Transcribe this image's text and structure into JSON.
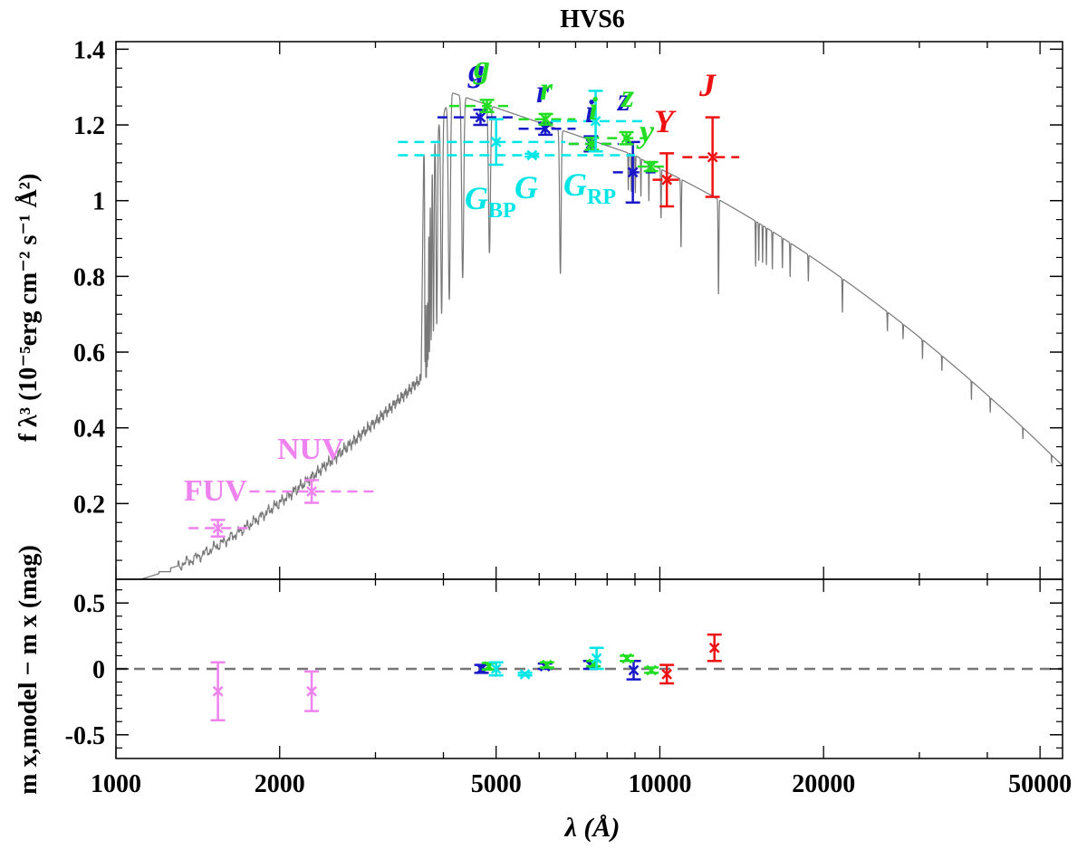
{
  "chart_data": [
    {
      "type": "line",
      "panel": "sed",
      "title": "HVS6",
      "ylabel": "f λ³ (10⁻⁵erg cm⁻² s⁻¹ Å²)",
      "xscale": "log",
      "xlim": [
        1000,
        55000
      ],
      "ylim": [
        0.0,
        1.42
      ],
      "yticks": [
        0.2,
        0.4,
        0.6,
        0.8,
        1.0,
        1.2,
        1.4
      ],
      "ytick_labels": [
        "0.2",
        "0.4",
        "0.6",
        "0.8",
        "1",
        "1.2",
        "1.4"
      ],
      "model_color": "#777777",
      "band_labels": [
        {
          "text": "FUV",
          "color": "#ee82ee"
        },
        {
          "text": "NUV",
          "color": "#ee82ee"
        },
        {
          "text": "g",
          "color": "#1818c8"
        },
        {
          "text": "g",
          "color": "#22dd22"
        },
        {
          "text": "r",
          "color": "#1818c8"
        },
        {
          "text": "r",
          "color": "#22dd22"
        },
        {
          "text": "i",
          "color": "#1818c8"
        },
        {
          "text": "i",
          "color": "#22dd22"
        },
        {
          "text": "z",
          "color": "#1818c8"
        },
        {
          "text": "z",
          "color": "#22dd22"
        },
        {
          "text": "y",
          "color": "#22dd22"
        },
        {
          "text": "Y",
          "color": "#ee1111"
        },
        {
          "text": "J",
          "color": "#ee1111"
        },
        {
          "text": "G",
          "sub": "BP",
          "color": "#00e5e5"
        },
        {
          "text": "G",
          "sub": "",
          "color": "#00e5e5"
        },
        {
          "text": "G",
          "sub": "RP",
          "color": "#00e5e5"
        }
      ],
      "photometry": [
        {
          "band": "FUV",
          "x": 1540,
          "y": 0.135,
          "err": 0.022,
          "xlo": 1360,
          "xhi": 1790,
          "color": "#ee82ee"
        },
        {
          "band": "NUV",
          "x": 2290,
          "y": 0.232,
          "err": 0.03,
          "xlo": 1760,
          "xhi": 3000,
          "color": "#ee82ee"
        },
        {
          "band": "g SDSS",
          "x": 4680,
          "y": 1.22,
          "err": 0.02,
          "xlo": 3900,
          "xhi": 5500,
          "color": "#1818c8"
        },
        {
          "band": "r SDSS",
          "x": 6160,
          "y": 1.19,
          "err": 0.016,
          "xlo": 5500,
          "xhi": 7000,
          "color": "#1818c8"
        },
        {
          "band": "i SDSS",
          "x": 7470,
          "y": 1.15,
          "err": 0.02,
          "xlo": 6800,
          "xhi": 8400,
          "color": "#1818c8"
        },
        {
          "band": "z SDSS",
          "x": 8920,
          "y": 1.075,
          "err": 0.08,
          "xlo": 8200,
          "xhi": 10000,
          "color": "#1818c8"
        },
        {
          "band": "g PS1",
          "x": 4810,
          "y": 1.25,
          "err": 0.016,
          "xlo": 4100,
          "xhi": 5400,
          "color": "#22dd22"
        },
        {
          "band": "r PS1",
          "x": 6170,
          "y": 1.215,
          "err": 0.014,
          "xlo": 5500,
          "xhi": 7000,
          "color": "#22dd22"
        },
        {
          "band": "i PS1",
          "x": 7500,
          "y": 1.15,
          "err": 0.016,
          "xlo": 6800,
          "xhi": 8200,
          "color": "#22dd22"
        },
        {
          "band": "z PS1",
          "x": 8680,
          "y": 1.165,
          "err": 0.016,
          "xlo": 8000,
          "xhi": 9400,
          "color": "#22dd22"
        },
        {
          "band": "y PS1",
          "x": 9630,
          "y": 1.09,
          "err": 0.012,
          "xlo": 9100,
          "xhi": 10300,
          "color": "#22dd22"
        },
        {
          "band": "G_BP",
          "x": 5000,
          "y": 1.155,
          "err": 0.06,
          "xlo": 3300,
          "xhi": 6700,
          "color": "#00e5e5"
        },
        {
          "band": "G",
          "x": 5820,
          "y": 1.12,
          "err": 0.004,
          "xlo": 3300,
          "xhi": 9000,
          "color": "#00e5e5"
        },
        {
          "band": "G_RP",
          "x": 7620,
          "y": 1.21,
          "err": 0.08,
          "xlo": 6300,
          "xhi": 9500,
          "color": "#00e5e5"
        },
        {
          "band": "Y",
          "x": 10300,
          "y": 1.055,
          "err": 0.07,
          "xlo": 9700,
          "xhi": 10900,
          "color": "#ee1111"
        },
        {
          "band": "J",
          "x": 12500,
          "y": 1.115,
          "err": 0.105,
          "xlo": 11000,
          "xhi": 14000,
          "color": "#ee1111"
        }
      ]
    },
    {
      "type": "scatter",
      "panel": "residuals",
      "xlabel": "λ (Å)",
      "ylabel": "m x,model − m x (mag)",
      "xscale": "log",
      "xlim": [
        1000,
        55000
      ],
      "ylim": [
        -0.68,
        0.68
      ],
      "yticks": [
        -0.5,
        0,
        0.5
      ],
      "ytick_labels": [
        "-0.5",
        "0",
        "0.5"
      ],
      "xticks": [
        1000,
        2000,
        5000,
        10000,
        20000,
        50000
      ],
      "xtick_labels": [
        "1000",
        "2000",
        "5000",
        "10000",
        "20000",
        "50000"
      ],
      "reference_line": 0,
      "points": [
        {
          "band": "FUV",
          "x": 1540,
          "y": -0.17,
          "err": 0.22,
          "color": "#ee82ee"
        },
        {
          "band": "NUV",
          "x": 2290,
          "y": -0.17,
          "err": 0.15,
          "color": "#ee82ee"
        },
        {
          "band": "g SDSS",
          "x": 4700,
          "y": 0.0,
          "err": 0.03,
          "color": "#1818c8"
        },
        {
          "band": "r SDSS",
          "x": 6150,
          "y": 0.02,
          "err": 0.02,
          "color": "#1818c8"
        },
        {
          "band": "i SDSS",
          "x": 7450,
          "y": 0.03,
          "err": 0.03,
          "color": "#1818c8"
        },
        {
          "band": "z SDSS",
          "x": 8950,
          "y": -0.01,
          "err": 0.07,
          "color": "#1818c8"
        },
        {
          "band": "g PS1",
          "x": 4850,
          "y": 0.02,
          "err": 0.025,
          "color": "#22dd22"
        },
        {
          "band": "r PS1",
          "x": 6200,
          "y": 0.03,
          "err": 0.02,
          "color": "#22dd22"
        },
        {
          "band": "i PS1",
          "x": 7550,
          "y": 0.04,
          "err": 0.02,
          "color": "#22dd22"
        },
        {
          "band": "z PS1",
          "x": 8700,
          "y": 0.08,
          "err": 0.02,
          "color": "#22dd22"
        },
        {
          "band": "y PS1",
          "x": 9650,
          "y": -0.01,
          "err": 0.02,
          "color": "#22dd22"
        },
        {
          "band": "G_BP",
          "x": 5000,
          "y": 0.0,
          "err": 0.05,
          "color": "#00e5e5"
        },
        {
          "band": "G",
          "x": 5650,
          "y": -0.04,
          "err": 0.01,
          "color": "#00e5e5"
        },
        {
          "band": "G_RP",
          "x": 7650,
          "y": 0.08,
          "err": 0.08,
          "color": "#00e5e5"
        },
        {
          "band": "Y",
          "x": 10300,
          "y": -0.04,
          "err": 0.07,
          "color": "#ee1111"
        },
        {
          "band": "J",
          "x": 12600,
          "y": 0.16,
          "err": 0.1,
          "color": "#ee1111"
        }
      ]
    }
  ]
}
